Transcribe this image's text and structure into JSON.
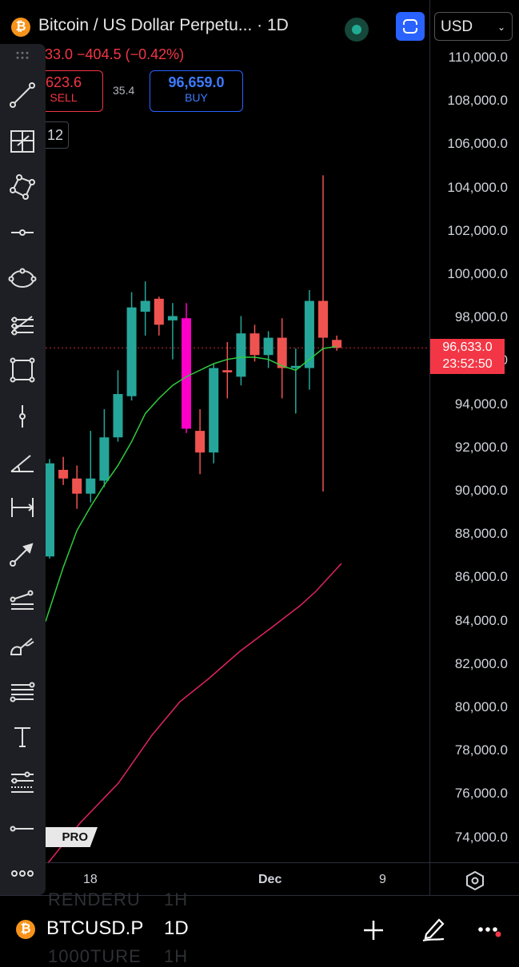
{
  "header": {
    "symbol_title": "Bitcoin / US Dollar Perpetu... · 1D",
    "change_text": "33.0 −404.5 (−0.42%)",
    "sell_price": "623.6",
    "sell_label": "SELL",
    "spread": "35.4",
    "buy_price": "96,659.0",
    "buy_label": "BUY",
    "interval_chip": "12",
    "currency": "USD",
    "btc_glyph": "₿"
  },
  "price_axis": {
    "labels": [
      "110,000.0",
      "108,000.0",
      "106,000.0",
      "104,000.0",
      "102,000.0",
      "100,000.0",
      "98,000.0",
      "96,000.0",
      "94,000.0",
      "92,000.0",
      "90,000.0",
      "88,000.0",
      "86,000.0",
      "84,000.0",
      "82,000.0",
      "80,000.0",
      "78,000.0",
      "76,000.0",
      "74,000.0"
    ],
    "last_price_tag": "96,633.0",
    "countdown_tag": "23:52:50"
  },
  "time_axis": {
    "labels": [
      "18",
      "Dec",
      "9"
    ]
  },
  "pro_badge": "PRO",
  "bottom_bar": {
    "symbol": "BTCUSD.P",
    "interval": "1D",
    "ghost_left": "RENDERU",
    "ghost_left2": "1000TURE",
    "ghost_right": "1H",
    "btc_glyph": "₿"
  },
  "colors": {
    "up": "#26a69a",
    "down": "#ef5350",
    "highlight": "#ff00c8",
    "ema_fast": "#2ecc40",
    "ema_slow": "#e0245e",
    "background": "#000000"
  },
  "toolbar_icons": [
    "drag-handle-icon",
    "trend-line-icon",
    "fib-grid-icon",
    "pattern-icon",
    "horizontal-ray-icon",
    "ellipse-icon",
    "pitchfork-icon",
    "rectangle-icon",
    "vertical-line-icon",
    "angle-icon",
    "date-range-icon",
    "arrow-icon",
    "fan-icon",
    "brush-icon",
    "parallel-lines-icon",
    "text-icon",
    "gann-icon",
    "horizontal-line-icon",
    "more-icon"
  ],
  "chart_data": {
    "type": "candlestick",
    "title": "Bitcoin / US Dollar Perpetual · 1D",
    "y_range": [
      73000,
      111000
    ],
    "x_labels": [
      "18",
      "Dec",
      "9"
    ],
    "candles": [
      {
        "o": 87000,
        "h": 91500,
        "l": 86900,
        "c": 91300
      },
      {
        "o": 91000,
        "h": 91600,
        "l": 90300,
        "c": 90600
      },
      {
        "o": 90600,
        "h": 91200,
        "l": 89200,
        "c": 89900
      },
      {
        "o": 89900,
        "h": 92800,
        "l": 89500,
        "c": 90600
      },
      {
        "o": 90500,
        "h": 93800,
        "l": 90200,
        "c": 92500
      },
      {
        "o": 92500,
        "h": 95600,
        "l": 92300,
        "c": 94500
      },
      {
        "o": 94400,
        "h": 99200,
        "l": 94200,
        "c": 98500
      },
      {
        "o": 98300,
        "h": 99700,
        "l": 97200,
        "c": 98800
      },
      {
        "o": 98900,
        "h": 99000,
        "l": 97200,
        "c": 97700
      },
      {
        "o": 97900,
        "h": 98700,
        "l": 96100,
        "c": 98100
      },
      {
        "o": 98000,
        "h": 98700,
        "l": 92700,
        "c": 92900,
        "highlight": true
      },
      {
        "o": 92800,
        "h": 93800,
        "l": 90800,
        "c": 91800
      },
      {
        "o": 91800,
        "h": 95900,
        "l": 91300,
        "c": 95700
      },
      {
        "o": 95600,
        "h": 96900,
        "l": 94300,
        "c": 95500
      },
      {
        "o": 95300,
        "h": 98100,
        "l": 94900,
        "c": 97300
      },
      {
        "o": 97300,
        "h": 97700,
        "l": 96000,
        "c": 96300
      },
      {
        "o": 96300,
        "h": 97400,
        "l": 95700,
        "c": 97100
      },
      {
        "o": 97100,
        "h": 98000,
        "l": 94300,
        "c": 95700
      },
      {
        "o": 95700,
        "h": 96600,
        "l": 93600,
        "c": 95800
      },
      {
        "o": 95700,
        "h": 99300,
        "l": 94700,
        "c": 98800
      },
      {
        "o": 98800,
        "h": 104600,
        "l": 90000,
        "c": 97100
      },
      {
        "o": 97000,
        "h": 97200,
        "l": 96500,
        "c": 96633
      }
    ],
    "ema_fast": [
      84000,
      86500,
      88200,
      89300,
      90300,
      91200,
      92300,
      93600,
      94300,
      94900,
      95300,
      95600,
      95900,
      96100,
      96200,
      96200,
      96100,
      95800,
      95600,
      96100,
      96600,
      96700
    ],
    "ema_slow_start": [
      73000,
      83200
    ],
    "last_price": 96633,
    "grid": false,
    "legend": "none"
  }
}
